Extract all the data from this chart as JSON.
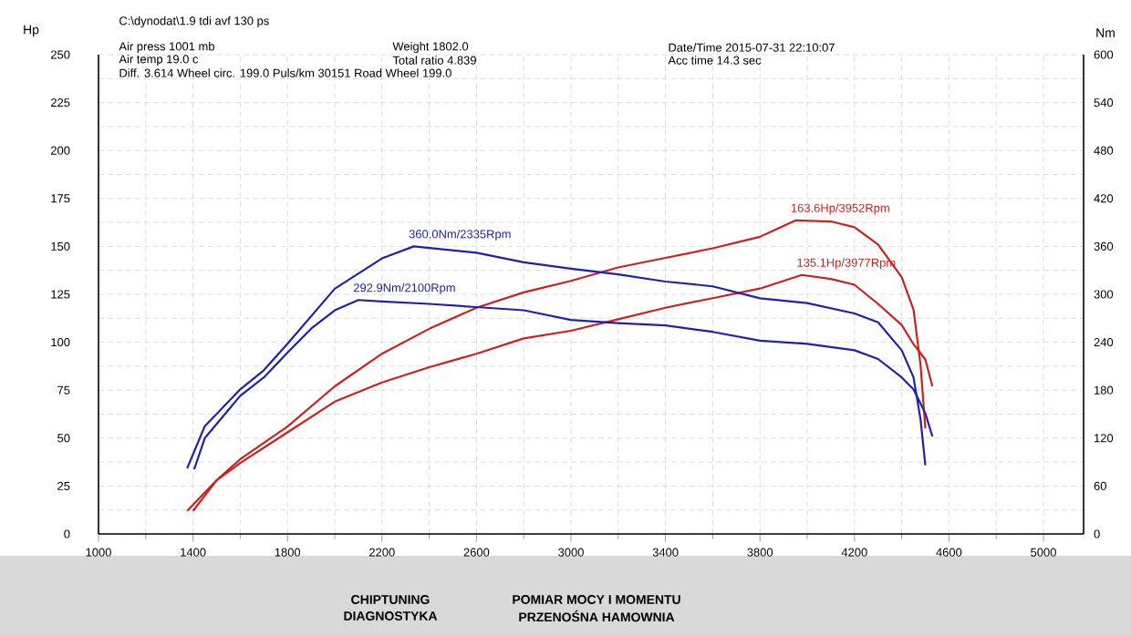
{
  "chart_data": {
    "type": "line",
    "title": "C:\\dynodat\\1.9 tdi avf 130 ps",
    "ylabel": "Hp",
    "y2label": "Nm",
    "xlim": [
      1000,
      5170
    ],
    "xticks": [
      1000,
      1400,
      1800,
      2200,
      2600,
      3000,
      3400,
      3800,
      4200,
      4600,
      5000
    ],
    "ylim": [
      0,
      250
    ],
    "yticks": [
      0,
      25,
      50,
      75,
      100,
      125,
      150,
      175,
      200,
      225,
      250
    ],
    "y2lim": [
      0,
      600
    ],
    "y2ticks": [
      0,
      60,
      120,
      180,
      240,
      300,
      360,
      420,
      480,
      540,
      600
    ],
    "grid": true,
    "marker": "none",
    "line_style": "solid",
    "series": [
      {
        "color": "#cc2020",
        "x": [
          1375,
          1500,
          1600,
          1800,
          2000,
          2200,
          2400,
          2600,
          2800,
          3000,
          3200,
          3400,
          3600,
          3800,
          3952,
          4100,
          4200,
          4300,
          4400,
          4450,
          4480,
          4500
        ],
        "values": [
          12,
          28,
          39,
          56,
          77,
          94,
          107,
          118,
          126,
          132,
          139,
          144,
          149,
          155,
          163.6,
          163,
          160,
          151,
          134,
          117,
          88,
          55
        ]
      },
      {
        "color": "#cc2020",
        "x": [
          1400,
          1500,
          1600,
          1800,
          2000,
          2200,
          2400,
          2600,
          2800,
          3000,
          3200,
          3400,
          3600,
          3800,
          3977,
          4100,
          4200,
          4300,
          4400,
          4450,
          4500,
          4530
        ],
        "values": [
          12,
          28,
          37,
          53,
          69,
          79,
          87,
          94,
          102,
          106,
          112,
          118,
          123,
          128,
          135.1,
          133,
          130,
          120,
          109,
          99,
          91,
          77
        ]
      },
      {
        "color": "#2020b0",
        "axis": "y2",
        "x": [
          1375,
          1450,
          1600,
          1700,
          1800,
          2000,
          2200,
          2335,
          2400,
          2600,
          2800,
          3000,
          3200,
          3400,
          3600,
          3800,
          4000,
          4200,
          4300,
          4400,
          4450,
          4480,
          4500
        ],
        "values": [
          82,
          135,
          181,
          205,
          238,
          307,
          345,
          360,
          358,
          352,
          340,
          332,
          325,
          316,
          310,
          295,
          289,
          276,
          265,
          230,
          196,
          143,
          86
        ]
      },
      {
        "color": "#2020b0",
        "axis": "y2",
        "x": [
          1405,
          1450,
          1600,
          1700,
          1800,
          1900,
          2000,
          2100,
          2200,
          2400,
          2600,
          2800,
          3000,
          3200,
          3400,
          3600,
          3800,
          4000,
          4200,
          4300,
          4400,
          4450,
          4500,
          4530
        ],
        "values": [
          81,
          120,
          173,
          196,
          227,
          257,
          280,
          292.9,
          291,
          288,
          284,
          280,
          268,
          264,
          261,
          253,
          242,
          238,
          230,
          219,
          196,
          181,
          151,
          122
        ]
      }
    ],
    "annotations": [
      "Air press  1001 mb",
      "Air temp  19.0 c",
      "Diff.    3.614   Wheel circ. 199.0   Puls/km   30151   Road Wheel 199.0",
      "Weight   1802.0",
      "Total ratio 4.839",
      "Date/Time  2015-07-31 22:10:07",
      "Acc time   14.3 sec",
      "CHIPTUNING",
      "DIAGNOSTYKA",
      "POMIAR MOCY I MOMENTU",
      "PRZENOŚNA HAMOWNIA",
      {
        "text": "360.0Nm/2335Rpm",
        "x": 2335,
        "y": 150
      },
      {
        "text": "292.9Nm/2100Rpm",
        "x": 2100,
        "y": 122
      },
      {
        "text": "163.6Hp/3952Rpm",
        "x": 3952,
        "y": 163.6
      },
      {
        "text": "135.1Hp/3977Rpm",
        "x": 3977,
        "y": 135.1
      }
    ]
  }
}
